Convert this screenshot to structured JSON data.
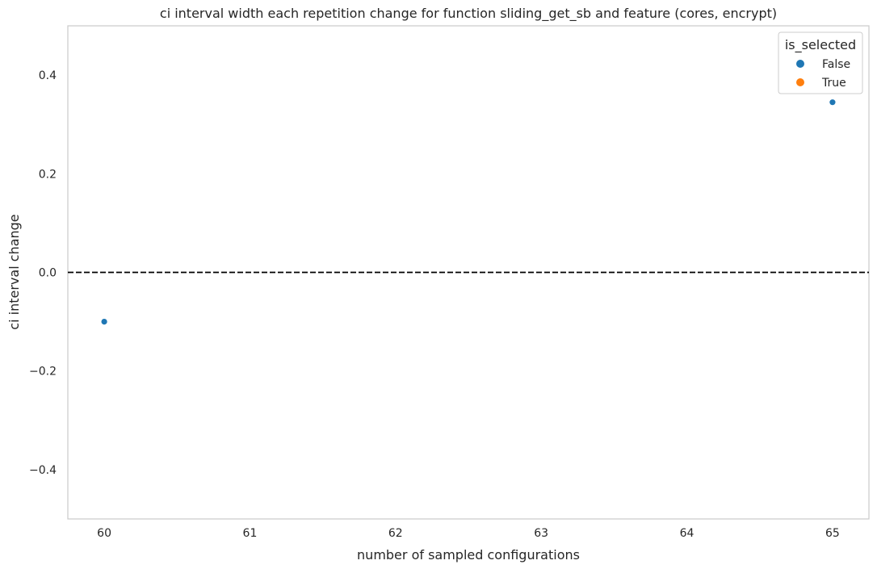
{
  "chart_data": {
    "type": "scatter",
    "title": "ci interval width each repetition change for function sliding_get_sb and feature (cores, encrypt)",
    "xlabel": "number of sampled configurations",
    "ylabel": "ci interval change",
    "xlim": [
      59.75,
      65.25
    ],
    "ylim": [
      -0.5,
      0.5
    ],
    "x_ticks": [
      60,
      61,
      62,
      63,
      64,
      65
    ],
    "y_ticks": [
      -0.4,
      -0.2,
      0.0,
      0.2,
      0.4
    ],
    "y_tick_labels": [
      "−0.4",
      "−0.2",
      "0.0",
      "0.2",
      "0.4"
    ],
    "grid": false,
    "reference_line": {
      "y": 0.0,
      "style": "dashed",
      "color": "#000000"
    },
    "legend": {
      "title": "is_selected",
      "placement": "top-right",
      "entries": [
        {
          "label": "False",
          "color": "#1f77b4"
        },
        {
          "label": "True",
          "color": "#ff7f0e"
        }
      ]
    },
    "series": [
      {
        "name": "False",
        "color": "#1f77b4",
        "points": [
          {
            "x": 60,
            "y": -0.1
          },
          {
            "x": 65,
            "y": 0.345
          }
        ]
      },
      {
        "name": "True",
        "color": "#ff7f0e",
        "points": []
      }
    ]
  }
}
